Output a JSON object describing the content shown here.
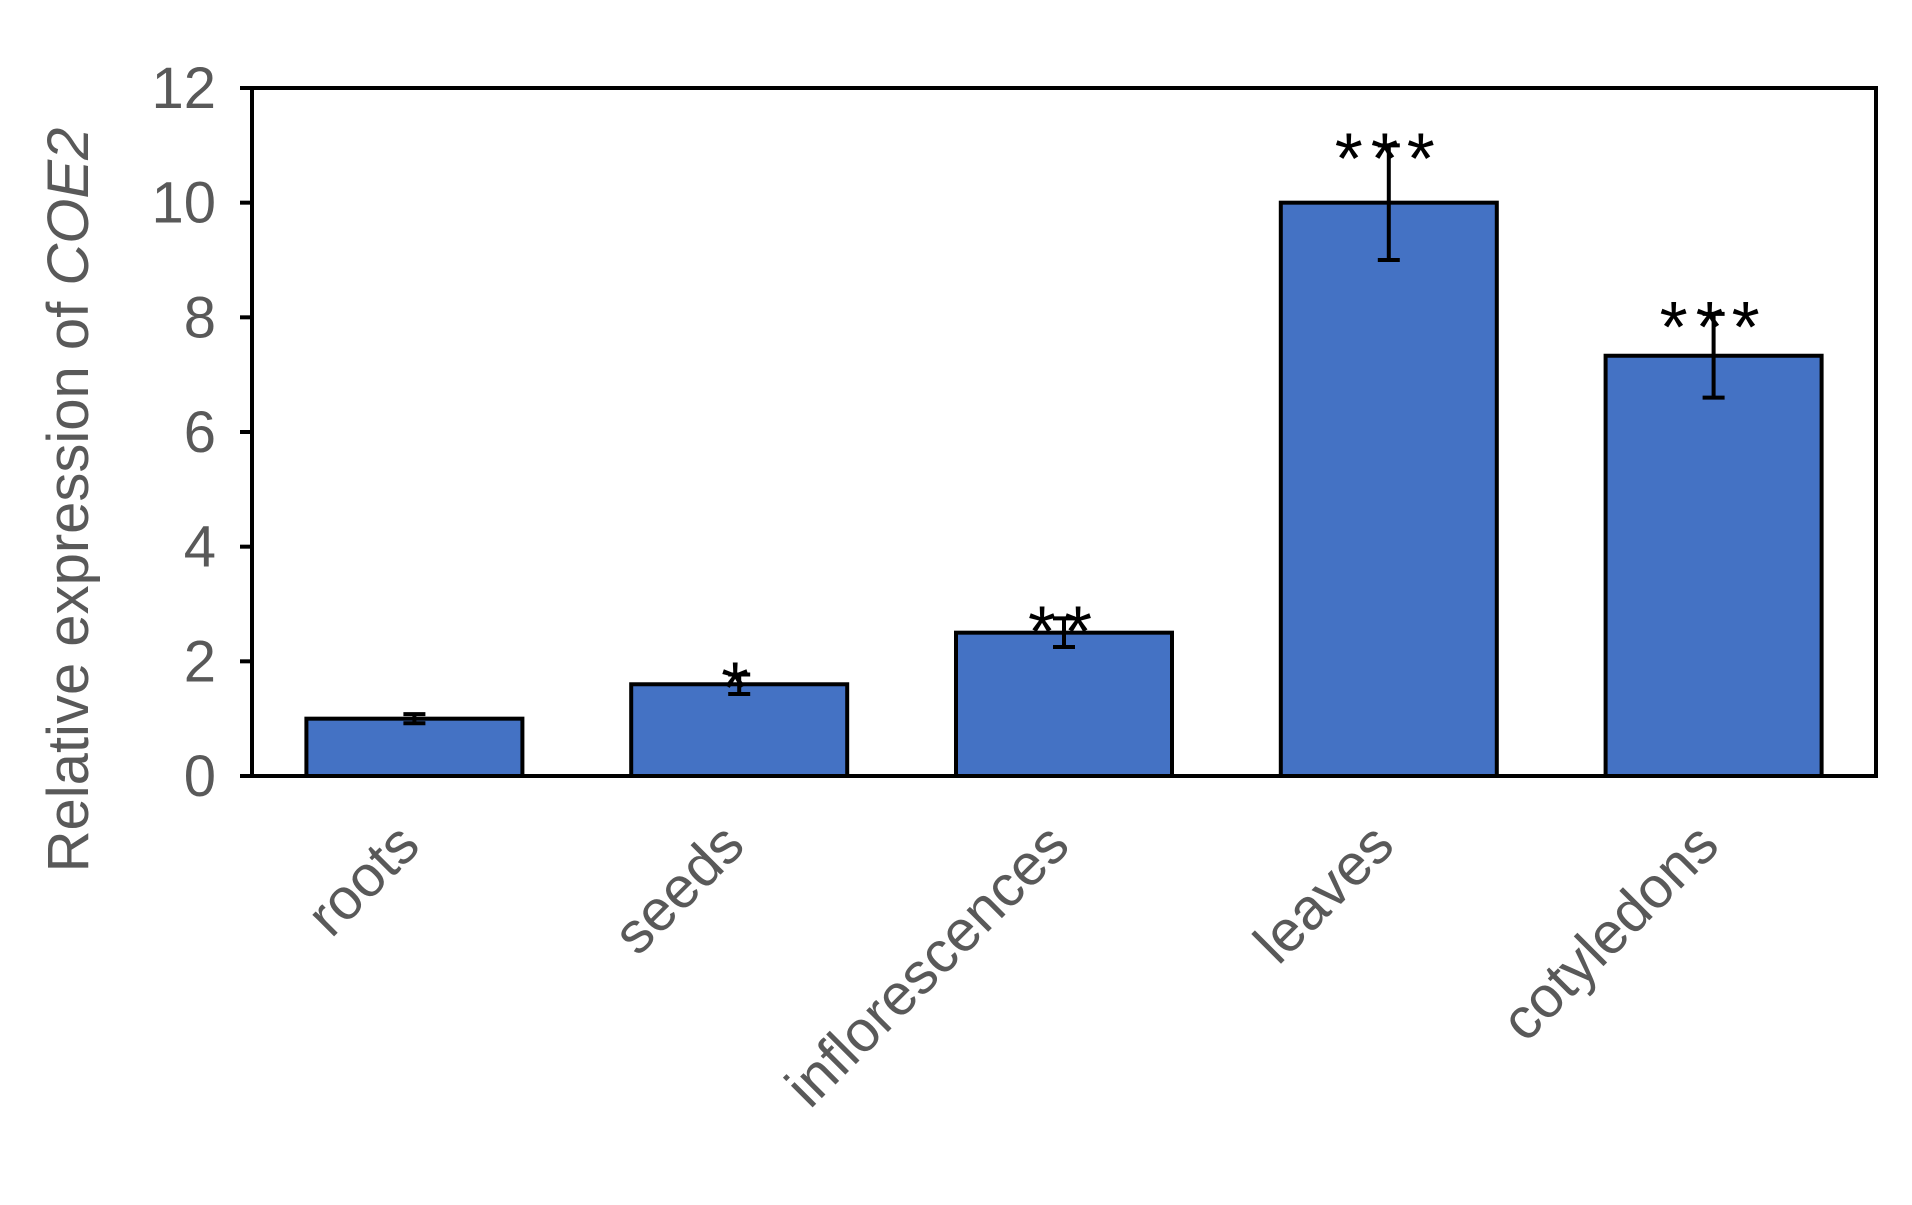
{
  "chart_data": {
    "type": "bar",
    "ylabel": {
      "prefix": "Relative expression of ",
      "gene": "COE2"
    },
    "ylim": [
      0,
      12
    ],
    "yticks": [
      "0",
      "2",
      "4",
      "6",
      "8",
      "10",
      "12"
    ],
    "categories": [
      "roots",
      "seeds",
      "inflorescences",
      "leaves",
      "cotyledons"
    ],
    "values": [
      1.0,
      1.6,
      2.5,
      10.0,
      7.33
    ],
    "errors": [
      0.08,
      0.17,
      0.25,
      1.0,
      0.73
    ],
    "significance": [
      "",
      "*",
      "**",
      "***",
      "***"
    ],
    "grid": false,
    "legend": "none",
    "colors": {
      "bar": "#4472C4",
      "outline": "#000000",
      "axis_text": "#595959",
      "significance": "#000000"
    }
  }
}
